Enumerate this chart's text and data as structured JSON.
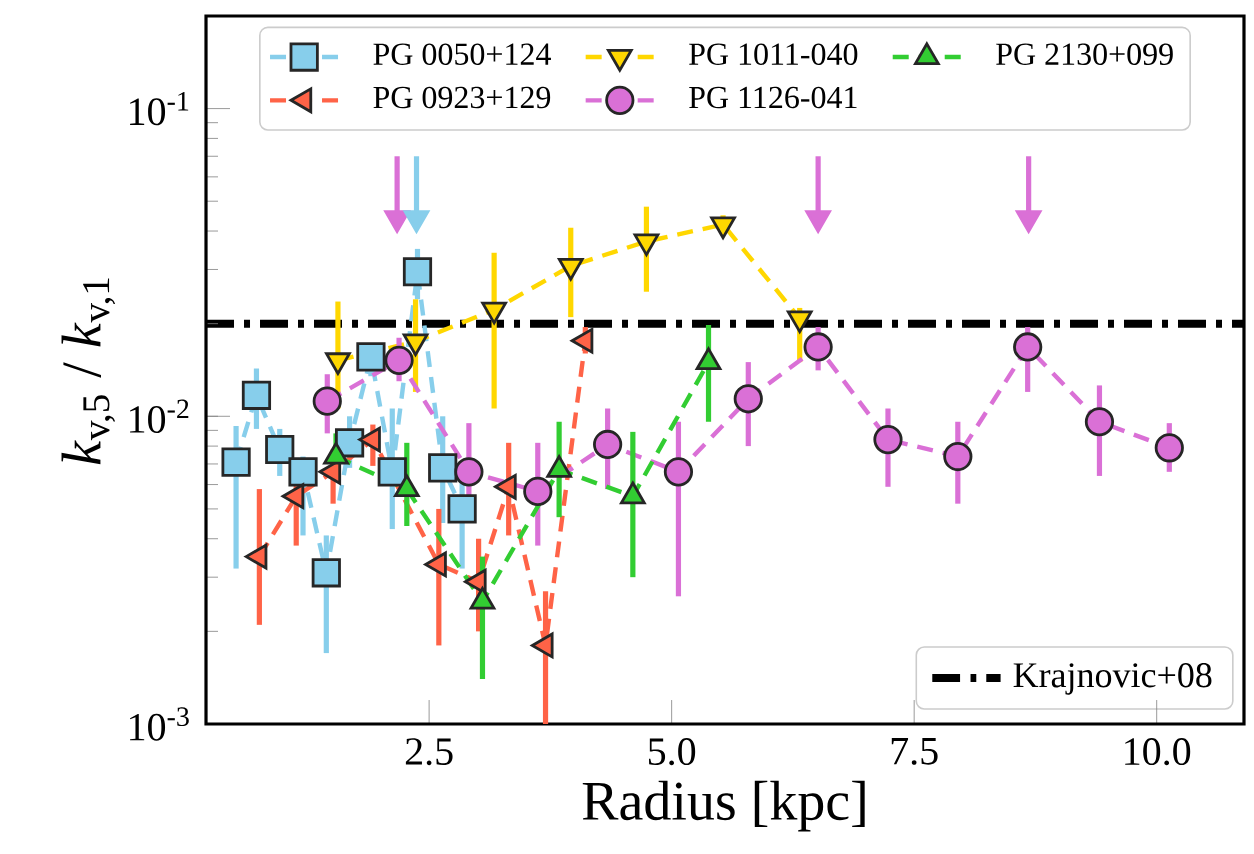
{
  "chart_data": {
    "type": "line",
    "xlabel": "Radius [kpc]",
    "ylabel": "*k*$_{v,5}$ / *k*$_{v,1}$",
    "log": "y",
    "xlim": [
      0.2,
      10.9
    ],
    "ylim": [
      0.001,
      0.2
    ],
    "xticks": [
      {
        "value": 2.5,
        "label": "2.5"
      },
      {
        "value": 5,
        "label": "5.0"
      },
      {
        "value": 7.5,
        "label": "7.5"
      },
      {
        "value": 10,
        "label": "10.0"
      }
    ],
    "yticks": [
      {
        "value": 0.001,
        "label": "10$^{-3}$"
      },
      {
        "value": 0.01,
        "label": "10$^{-2}$"
      },
      {
        "value": 0.1,
        "label": "10$^{-1}$"
      }
    ],
    "grid": false,
    "legend": "top",
    "line_style": "dashed",
    "series": [
      {
        "name": "PG 0050+124",
        "color": "#87ceeb",
        "marker": "square",
        "x": [
          0.51,
          0.72,
          0.96,
          1.2,
          1.44,
          1.68,
          1.9,
          2.12,
          2.38,
          2.64,
          2.84
        ],
        "values": [
          0.0071,
          0.0117,
          0.0078,
          0.0066,
          0.0031,
          0.0082,
          0.0156,
          0.0066,
          0.0295,
          0.0068,
          0.005
        ],
        "errors": [
          [
            0.0032,
            0.0093
          ],
          [
            0.0091,
            0.0143
          ],
          [
            0.0064,
            0.0091
          ],
          [
            0.0041,
            0.0074
          ],
          [
            0.0017,
            0.0041
          ],
          [
            0.0068,
            0.01
          ],
          [
            0.0135,
            0.017
          ],
          [
            0.0043,
            0.0106
          ],
          [
            0.024,
            0.035
          ],
          [
            0.0045,
            0.01
          ],
          [
            0.0032,
            0.0066
          ]
        ]
      },
      {
        "name": "PG 0923+129",
        "color": "#ff6347",
        "marker": "triangle-left",
        "x": [
          0.75,
          1.13,
          1.51,
          1.92,
          2.6,
          3.01,
          3.32,
          3.7,
          4.11
        ],
        "values": [
          0.0035,
          0.0055,
          0.0066,
          0.0084,
          0.0033,
          0.0029,
          0.0059,
          0.0018,
          0.0176
        ],
        "errors": [
          [
            0.0021,
            0.0058
          ],
          [
            0.0038,
            0.0072
          ],
          [
            0.0052,
            0.0078
          ],
          [
            0.0069,
            0.0094
          ],
          [
            0.0018,
            0.005
          ],
          [
            0.002,
            0.004
          ],
          [
            0.0041,
            0.0082
          ],
          [
            0.001,
            0.0027
          ],
          [
            0.016,
            0.0195
          ]
        ]
      },
      {
        "name": "PG 1011-040",
        "color": "#ffd700",
        "marker": "triangle-down",
        "x": [
          1.56,
          2.36,
          3.17,
          3.96,
          4.74,
          5.53,
          6.32
        ],
        "values": [
          0.0152,
          0.0175,
          0.0222,
          0.0308,
          0.037,
          0.042,
          0.0208
        ],
        "errors": [
          [
            0.0106,
            0.0236
          ],
          [
            0.012,
            0.024
          ],
          [
            0.0106,
            0.034
          ],
          [
            0.021,
            0.041
          ],
          [
            0.0254,
            0.048
          ],
          [
            0.04,
            0.045
          ],
          [
            0.015,
            0.0225
          ]
        ]
      },
      {
        "name": "PG 1126-041",
        "color": "#da70d6",
        "marker": "circle",
        "x": [
          1.45,
          2.19,
          2.91,
          3.62,
          4.34,
          5.07,
          5.79,
          6.51,
          7.23,
          7.95,
          8.67,
          9.41,
          10.13
        ],
        "values": [
          0.0112,
          0.0152,
          0.0066,
          0.0057,
          0.0081,
          0.0066,
          0.0114,
          0.0168,
          0.0084,
          0.0074,
          0.0168,
          0.0096,
          0.0079
        ],
        "errors": [
          [
            0.0088,
            0.0137
          ],
          [
            0.013,
            0.018
          ],
          [
            0.0045,
            0.0095
          ],
          [
            0.0038,
            0.0082
          ],
          [
            0.0058,
            0.0106
          ],
          [
            0.0026,
            0.0096
          ],
          [
            0.008,
            0.015
          ],
          [
            0.0141,
            0.0195
          ],
          [
            0.0059,
            0.0106
          ],
          [
            0.0052,
            0.0096
          ],
          [
            0.012,
            0.0195
          ],
          [
            0.0064,
            0.0126
          ],
          [
            0.0066,
            0.0095
          ]
        ]
      },
      {
        "name": "PG 2130+099",
        "color": "#32cd32",
        "marker": "triangle",
        "x": [
          1.54,
          2.27,
          3.05,
          3.84,
          4.6,
          5.38
        ],
        "values": [
          0.0074,
          0.0058,
          0.0025,
          0.0067,
          0.0055,
          0.015
        ],
        "errors": [
          [
            0.0062,
            0.0088
          ],
          [
            0.0044,
            0.0082
          ],
          [
            0.0014,
            0.0035
          ],
          [
            0.0047,
            0.0096
          ],
          [
            0.003,
            0.0089
          ],
          [
            0.0096,
            0.0198
          ]
        ]
      },
      {
        "type": "scatter",
        "color": "#da70d6",
        "marker": "triangle-down",
        "x": [
          2.17,
          6.51,
          8.68
        ],
        "values": [
          0.044,
          0.044,
          0.044
        ],
        "errors": [
          [
            0.044,
            0.07
          ],
          [
            0.044,
            0.07
          ],
          [
            0.044,
            0.07
          ]
        ]
      },
      {
        "type": "scatter",
        "color": "#87ceeb",
        "marker": "triangle-down",
        "x": [
          2.37
        ],
        "values": [
          0.044
        ],
        "errors": [
          [
            0.044,
            0.07
          ]
        ]
      }
    ],
    "ref_lines": [
      {
        "axis": "y",
        "value": 0.02,
        "label": "Krajnovic+08",
        "color": "#000000",
        "line_style": "dashdot"
      }
    ]
  }
}
